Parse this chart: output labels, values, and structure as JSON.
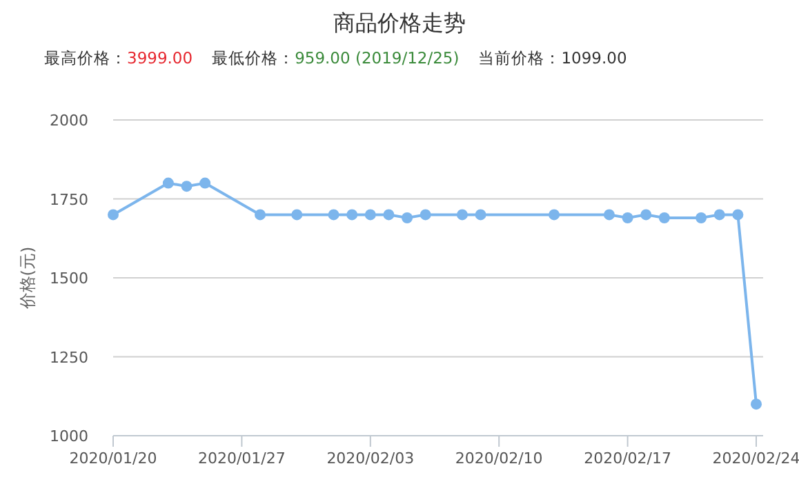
{
  "chart_data": {
    "type": "line",
    "title": "商品价格走势",
    "annotations": [
      "最高价格：3999.00",
      "最低价格：959.00 (2019/12/25)",
      "当前价格：1099.00"
    ],
    "ylabel": "价格(元)",
    "x": [
      "2020-01-20",
      "2020-01-23",
      "2020-01-24",
      "2020-01-25",
      "2020-01-28",
      "2020-01-30",
      "2020-02-01",
      "2020-02-02",
      "2020-02-03",
      "2020-02-04",
      "2020-02-05",
      "2020-02-06",
      "2020-02-08",
      "2020-02-09",
      "2020-02-13",
      "2020-02-16",
      "2020-02-17",
      "2020-02-18",
      "2020-02-19",
      "2020-02-21",
      "2020-02-22",
      "2020-02-23",
      "2020-02-24"
    ],
    "series": [
      {
        "color": "#7cb5ec",
        "values": [
          1700,
          1800,
          1790,
          1800,
          1700,
          1700,
          1700,
          1700,
          1700,
          1700,
          1690,
          1700,
          1700,
          1700,
          1700,
          1700,
          1690,
          1700,
          1690,
          1690,
          1700,
          1700,
          1100
        ]
      }
    ],
    "xlim": [
      "2020-01-20",
      "2020-02-24T09:00"
    ],
    "xticks": [
      {
        "value": "2020-01-20",
        "label": "2020/01/20"
      },
      {
        "value": "2020-01-27",
        "label": "2020/01/27"
      },
      {
        "value": "2020-02-03",
        "label": "2020/02/03"
      },
      {
        "value": "2020-02-10",
        "label": "2020/02/10"
      },
      {
        "value": "2020-02-17",
        "label": "2020/02/17"
      },
      {
        "value": "2020-02-24",
        "label": "2020/02/24"
      }
    ],
    "ylim": [
      1000,
      2000
    ],
    "yticks": [
      1000,
      1250,
      1500,
      1750,
      2000
    ],
    "grid": "y",
    "marker": "circle",
    "line_style": "solid"
  }
}
